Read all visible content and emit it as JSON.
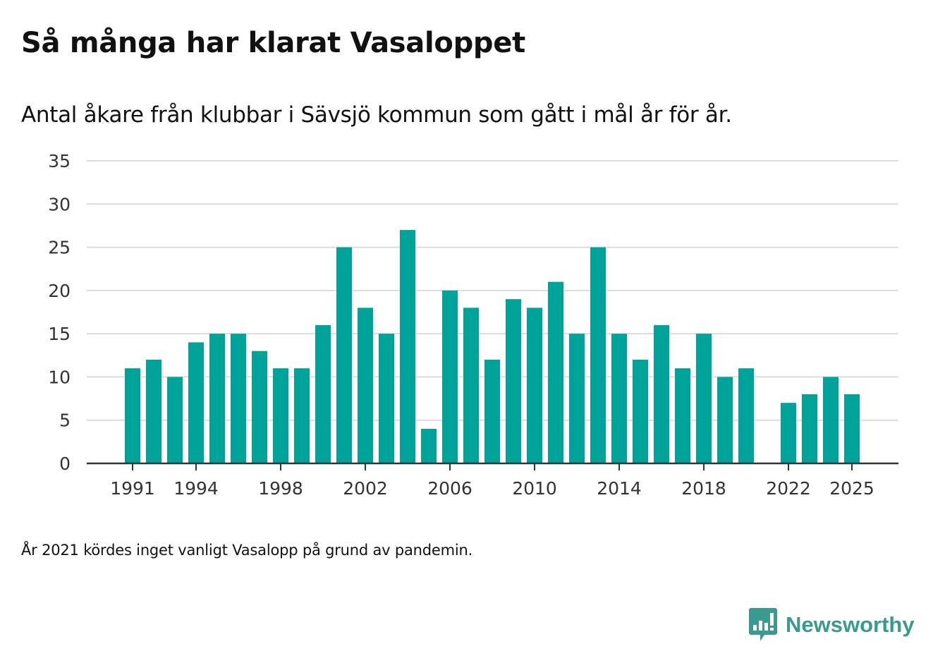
{
  "chart_data": {
    "type": "bar",
    "title": "Så många har klarat Vasaloppet",
    "subtitle": "Antal åkare från klubbar i Sävsjö kommun som gått i mål år för år.",
    "xlabel": "",
    "ylabel": "",
    "ylim": [
      0,
      35
    ],
    "yticks": [
      0,
      5,
      10,
      15,
      20,
      25,
      30,
      35
    ],
    "xticks": [
      1991,
      1994,
      1998,
      2002,
      2006,
      2010,
      2014,
      2018,
      2022,
      2025
    ],
    "grid": true,
    "color": "#00a39a",
    "categories": [
      1991,
      1992,
      1993,
      1994,
      1995,
      1996,
      1997,
      1998,
      1999,
      2000,
      2001,
      2002,
      2003,
      2004,
      2005,
      2006,
      2007,
      2008,
      2009,
      2010,
      2011,
      2012,
      2013,
      2014,
      2015,
      2016,
      2017,
      2018,
      2019,
      2020,
      2021,
      2022,
      2023,
      2024,
      2025
    ],
    "values": [
      11,
      12,
      10,
      14,
      15,
      15,
      13,
      11,
      11,
      16,
      25,
      18,
      15,
      27,
      4,
      20,
      18,
      12,
      19,
      18,
      21,
      15,
      25,
      15,
      12,
      16,
      11,
      15,
      10,
      11,
      null,
      7,
      8,
      10,
      8
    ]
  },
  "note": "År 2021 kördes inget vanligt Vasalopp på grund av pandemin.",
  "brand": {
    "name": "Newsworthy",
    "color": "#3a9a8f"
  }
}
